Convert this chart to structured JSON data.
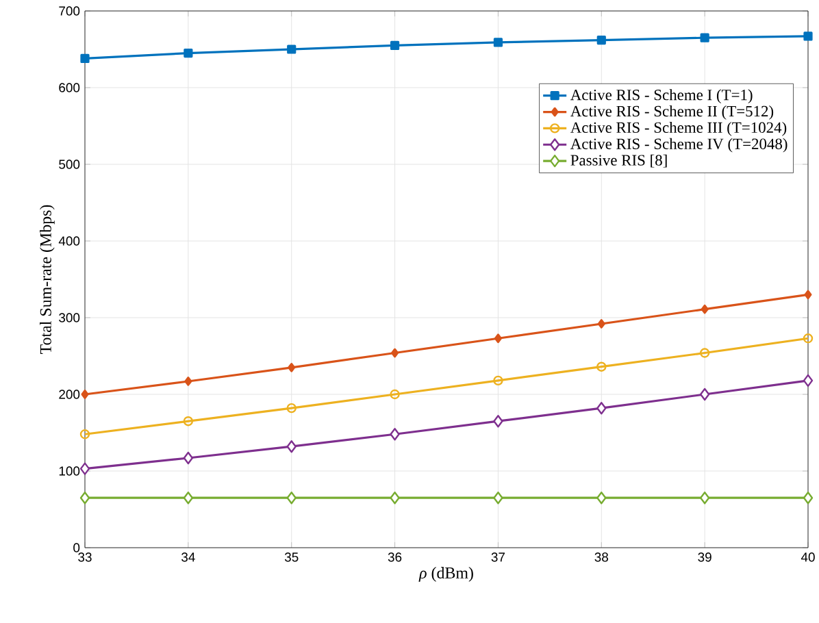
{
  "chart_data": {
    "type": "line",
    "xlabel": "*ρ* (dBm)",
    "ylabel": "Total Sum-rate (Mbps)",
    "x": [
      33,
      34,
      35,
      36,
      37,
      38,
      39,
      40
    ],
    "series": [
      {
        "name": "Active RIS - Scheme I (T=1)",
        "color": "#0072bd",
        "marker": "square",
        "values": [
          638,
          645,
          650,
          655,
          659,
          662,
          665,
          667
        ]
      },
      {
        "name": "Active RIS - Scheme II (T=512)",
        "color": "#d95319",
        "marker": "diamond",
        "values": [
          200,
          217,
          235,
          254,
          273,
          292,
          311,
          330
        ]
      },
      {
        "name": "Active RIS - Scheme III (T=1024)",
        "color": "#edb120",
        "marker": "circle",
        "values": [
          148,
          165,
          182,
          200,
          218,
          236,
          254,
          273
        ]
      },
      {
        "name": "Active RIS - Scheme IV (T=2048)",
        "color": "#7e2f8e",
        "marker": "diamond",
        "values": [
          103,
          117,
          132,
          148,
          165,
          182,
          200,
          218
        ]
      },
      {
        "name": "Passive RIS [8]",
        "color": "#77ac30",
        "marker": "diamond",
        "values": [
          65,
          65,
          65,
          65,
          65,
          65,
          65,
          65
        ]
      }
    ],
    "xlim": [
      33,
      40
    ],
    "ylim": [
      0,
      700
    ],
    "xticks": [
      33,
      34,
      35,
      36,
      37,
      38,
      39,
      40
    ],
    "yticks": [
      0,
      100,
      200,
      300,
      400,
      500,
      600,
      700
    ],
    "grid": true,
    "legend": "top right",
    "line_style": "solid"
  }
}
